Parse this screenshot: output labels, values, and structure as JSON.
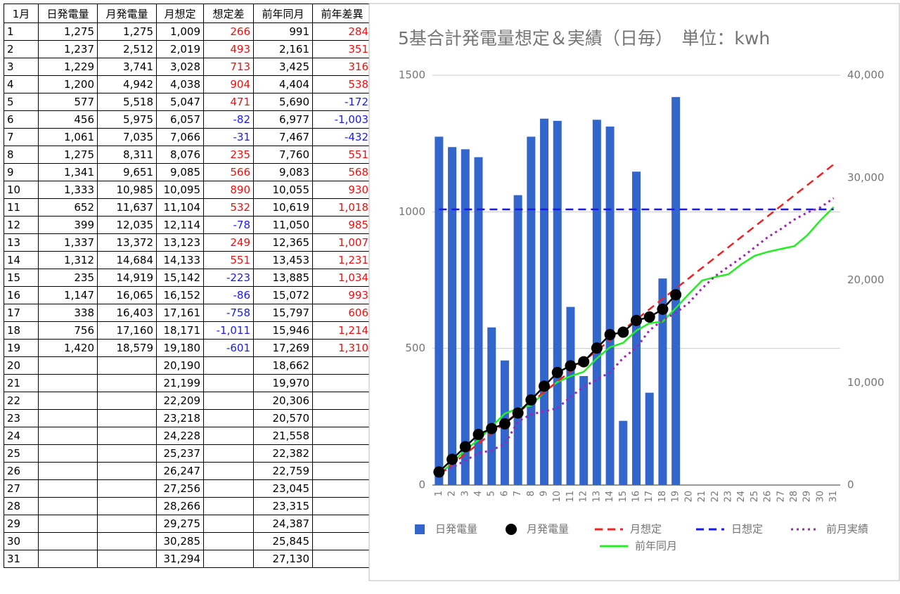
{
  "table": {
    "header": [
      "1月",
      "日発電量",
      "月発電量",
      "月想定",
      "想定差",
      "前年同月",
      "前年差異"
    ],
    "rows": [
      [
        "1",
        "1,275",
        "1,275",
        "1,009",
        "266",
        "991",
        "284"
      ],
      [
        "2",
        "1,237",
        "2,512",
        "2,019",
        "493",
        "2,161",
        "351"
      ],
      [
        "3",
        "1,229",
        "3,741",
        "3,028",
        "713",
        "3,425",
        "316"
      ],
      [
        "4",
        "1,200",
        "4,942",
        "4,038",
        "904",
        "4,404",
        "538"
      ],
      [
        "5",
        "577",
        "5,518",
        "5,047",
        "471",
        "5,690",
        "-172"
      ],
      [
        "6",
        "456",
        "5,975",
        "6,057",
        "-82",
        "6,977",
        "-1,003"
      ],
      [
        "7",
        "1,061",
        "7,035",
        "7,066",
        "-31",
        "7,467",
        "-432"
      ],
      [
        "8",
        "1,275",
        "8,311",
        "8,076",
        "235",
        "7,760",
        "551"
      ],
      [
        "9",
        "1,341",
        "9,651",
        "9,085",
        "566",
        "9,083",
        "568"
      ],
      [
        "10",
        "1,333",
        "10,985",
        "10,095",
        "890",
        "10,055",
        "930"
      ],
      [
        "11",
        "652",
        "11,637",
        "11,104",
        "532",
        "10,619",
        "1,018"
      ],
      [
        "12",
        "399",
        "12,035",
        "12,114",
        "-78",
        "11,050",
        "985"
      ],
      [
        "13",
        "1,337",
        "13,372",
        "13,123",
        "249",
        "12,365",
        "1,007"
      ],
      [
        "14",
        "1,312",
        "14,684",
        "14,133",
        "551",
        "13,453",
        "1,231"
      ],
      [
        "15",
        "235",
        "14,919",
        "15,142",
        "-223",
        "13,885",
        "1,034"
      ],
      [
        "16",
        "1,147",
        "16,065",
        "16,152",
        "-86",
        "15,072",
        "993"
      ],
      [
        "17",
        "338",
        "16,403",
        "17,161",
        "-758",
        "15,797",
        "606"
      ],
      [
        "18",
        "756",
        "17,160",
        "18,171",
        "-1,011",
        "15,946",
        "1,214"
      ],
      [
        "19",
        "1,420",
        "18,579",
        "19,180",
        "-601",
        "17,269",
        "1,310"
      ],
      [
        "20",
        null,
        null,
        "20,190",
        null,
        "18,662",
        null
      ],
      [
        "21",
        null,
        null,
        "21,199",
        null,
        "19,970",
        null
      ],
      [
        "22",
        null,
        null,
        "22,209",
        null,
        "20,306",
        null
      ],
      [
        "23",
        null,
        null,
        "23,218",
        null,
        "20,570",
        null
      ],
      [
        "24",
        null,
        null,
        "24,228",
        null,
        "21,558",
        null
      ],
      [
        "25",
        null,
        null,
        "25,237",
        null,
        "22,382",
        null
      ],
      [
        "26",
        null,
        null,
        "26,247",
        null,
        "22,759",
        null
      ],
      [
        "27",
        null,
        null,
        "27,256",
        null,
        "23,045",
        null
      ],
      [
        "28",
        null,
        null,
        "28,266",
        null,
        "23,315",
        null
      ],
      [
        "29",
        null,
        null,
        "29,275",
        null,
        "24,387",
        null
      ],
      [
        "30",
        null,
        null,
        "30,285",
        null,
        "25,845",
        null
      ],
      [
        "31",
        null,
        null,
        "31,294",
        null,
        "27,130",
        null
      ]
    ]
  },
  "chart_data": {
    "type": "combo",
    "title": "5基合計発電量想定＆実績（日毎）　単位：kwh",
    "categories": [
      "1",
      "2",
      "3",
      "4",
      "5",
      "6",
      "7",
      "8",
      "9",
      "10",
      "11",
      "12",
      "13",
      "14",
      "15",
      "16",
      "17",
      "18",
      "19",
      "20",
      "21",
      "22",
      "23",
      "24",
      "25",
      "26",
      "27",
      "28",
      "29",
      "30",
      "31"
    ],
    "ylim": [
      0,
      1500
    ],
    "yticks": [
      0,
      500,
      1000,
      1500
    ],
    "y2lim": [
      0,
      40000
    ],
    "y2ticks": [
      0,
      {
        "value": 10000,
        "label": "10,000"
      },
      {
        "value": 20000,
        "label": "20,000"
      },
      {
        "value": 30000,
        "label": "30,000"
      },
      {
        "value": 40000,
        "label": "40,000"
      }
    ],
    "grid": true,
    "legend": "bottom",
    "series": [
      {
        "name": "日発電量",
        "type": "bar",
        "color": "#3366cc",
        "values": [
          1275,
          1237,
          1229,
          1200,
          577,
          456,
          1061,
          1275,
          1341,
          1333,
          652,
          399,
          1337,
          1312,
          235,
          1147,
          338,
          756,
          1420,
          null,
          null,
          null,
          null,
          null,
          null,
          null,
          null,
          null,
          null,
          null,
          null
        ]
      },
      {
        "name": "前年同月",
        "type": "line",
        "style": "solid",
        "color": "#22ee22",
        "axis": "y2",
        "values": [
          991,
          2161,
          3425,
          4404,
          5690,
          6977,
          7467,
          7760,
          9083,
          10055,
          10619,
          11050,
          12365,
          13453,
          13885,
          15072,
          15797,
          15946,
          17269,
          18662,
          19970,
          20306,
          20570,
          21558,
          22382,
          22759,
          23045,
          23315,
          24387,
          25845,
          27130
        ]
      },
      {
        "name": "前月実績",
        "type": "line",
        "style": "dotted",
        "color": "#9c27b0",
        "axis": "y2",
        "values": [
          1235,
          1700,
          2400,
          3100,
          3400,
          4000,
          6200,
          6900,
          7200,
          7500,
          8600,
          9600,
          10300,
          11000,
          12400,
          13400,
          15100,
          16100,
          16800,
          17800,
          19200,
          20400,
          21300,
          22200,
          23200,
          24200,
          25000,
          25900,
          26600,
          27100,
          28000
        ]
      },
      {
        "name": "日想定",
        "type": "line",
        "style": "dashed",
        "color": "#1a1aee",
        "values": [
          1009,
          1009,
          1009,
          1009,
          1009,
          1009,
          1009,
          1009,
          1009,
          1009,
          1009,
          1009,
          1009,
          1009,
          1009,
          1009,
          1009,
          1009,
          1009,
          1009,
          1009,
          1009,
          1009,
          1009,
          1009,
          1009,
          1009,
          1009,
          1009,
          1009,
          1009
        ]
      },
      {
        "name": "月想定",
        "type": "line",
        "style": "dashed",
        "color": "#ee2222",
        "axis": "y2",
        "values": [
          1009,
          2019,
          3028,
          4038,
          5047,
          6057,
          7066,
          8076,
          9085,
          10095,
          11104,
          12114,
          13123,
          14133,
          15142,
          16152,
          17161,
          18171,
          19180,
          20190,
          21199,
          22209,
          23218,
          24228,
          25237,
          26247,
          27256,
          28266,
          29275,
          30285,
          31294
        ]
      },
      {
        "name": "月発電量",
        "type": "line",
        "style": "solid",
        "marker": true,
        "color": "#000000",
        "axis": "y2",
        "values": [
          1275,
          2512,
          3741,
          4942,
          5518,
          5975,
          7035,
          8311,
          9651,
          10985,
          11637,
          12035,
          13372,
          14684,
          14919,
          16065,
          16403,
          17160,
          18579,
          null,
          null,
          null,
          null,
          null,
          null,
          null,
          null,
          null,
          null,
          null,
          null
        ]
      }
    ]
  }
}
